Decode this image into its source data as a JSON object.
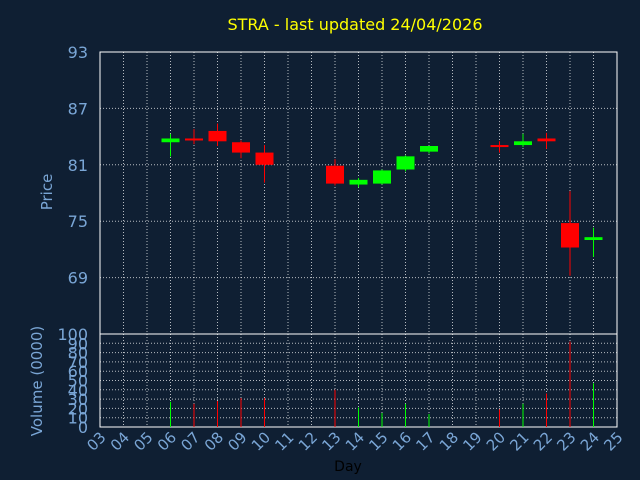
{
  "chart_data": [
    {
      "type": "candlestick",
      "title": "STRA - last updated 24/04/2026",
      "xlabel": "Day",
      "ylabel": "Price",
      "ylim": [
        63,
        93
      ],
      "yticks": [
        "93",
        "87",
        "81",
        "75",
        "69"
      ],
      "grid": true,
      "colors": {
        "title": "#ffff00",
        "axis_text": "#7aa6d6",
        "up": "#00ff00",
        "down": "#ff0000",
        "grid": "#ffffff"
      },
      "x_categories": [
        "03",
        "04",
        "05",
        "06",
        "07",
        "08",
        "09",
        "10",
        "11",
        "12",
        "13",
        "14",
        "15",
        "16",
        "17",
        "18",
        "19",
        "20",
        "21",
        "22",
        "23",
        "24",
        "25"
      ],
      "candles": [
        {
          "day": "06",
          "open": 83.4,
          "high": 84.3,
          "low": 81.9,
          "close": 83.8
        },
        {
          "day": "07",
          "open": 83.8,
          "high": 84.8,
          "low": 83.2,
          "close": 83.6
        },
        {
          "day": "08",
          "open": 84.6,
          "high": 85.4,
          "low": 83.0,
          "close": 83.5
        },
        {
          "day": "09",
          "open": 83.4,
          "high": 83.6,
          "low": 81.7,
          "close": 82.3
        },
        {
          "day": "10",
          "open": 82.3,
          "high": 83.1,
          "low": 79.1,
          "close": 81.0
        },
        {
          "day": "13",
          "open": 80.9,
          "high": 81.6,
          "low": 78.8,
          "close": 79.0
        },
        {
          "day": "14",
          "open": 78.9,
          "high": 79.6,
          "low": 78.6,
          "close": 79.4
        },
        {
          "day": "15",
          "open": 79.0,
          "high": 80.5,
          "low": 78.9,
          "close": 80.4
        },
        {
          "day": "16",
          "open": 80.5,
          "high": 82.0,
          "low": 80.3,
          "close": 81.9
        },
        {
          "day": "17",
          "open": 82.4,
          "high": 83.0,
          "low": 82.2,
          "close": 83.0
        },
        {
          "day": "20",
          "open": 83.1,
          "high": 83.5,
          "low": 82.3,
          "close": 82.9
        },
        {
          "day": "21",
          "open": 83.1,
          "high": 84.3,
          "low": 82.9,
          "close": 83.5
        },
        {
          "day": "22",
          "open": 83.8,
          "high": 84.4,
          "low": 82.7,
          "close": 83.5
        },
        {
          "day": "23",
          "open": 74.8,
          "high": 78.2,
          "low": 69.2,
          "close": 72.2
        },
        {
          "day": "24",
          "open": 73.0,
          "high": 74.3,
          "low": 71.2,
          "close": 73.3
        }
      ]
    },
    {
      "type": "bar",
      "xlabel": "Day",
      "ylabel": "Volume (0000)",
      "ylim": [
        0,
        100
      ],
      "yticks": [
        "100",
        "90",
        "80",
        "70",
        "60",
        "50",
        "40",
        "30",
        "20",
        "10",
        "0"
      ],
      "grid": true,
      "categories": [
        "06",
        "07",
        "08",
        "09",
        "10",
        "13",
        "14",
        "15",
        "16",
        "17",
        "20",
        "21",
        "22",
        "23",
        "24"
      ],
      "values": [
        27,
        25,
        28,
        31,
        31,
        40,
        21,
        15,
        25,
        14,
        19,
        25,
        36,
        92,
        47
      ],
      "direction": [
        "up",
        "down",
        "down",
        "down",
        "down",
        "down",
        "up",
        "up",
        "up",
        "up",
        "down",
        "up",
        "down",
        "down",
        "up"
      ]
    }
  ]
}
